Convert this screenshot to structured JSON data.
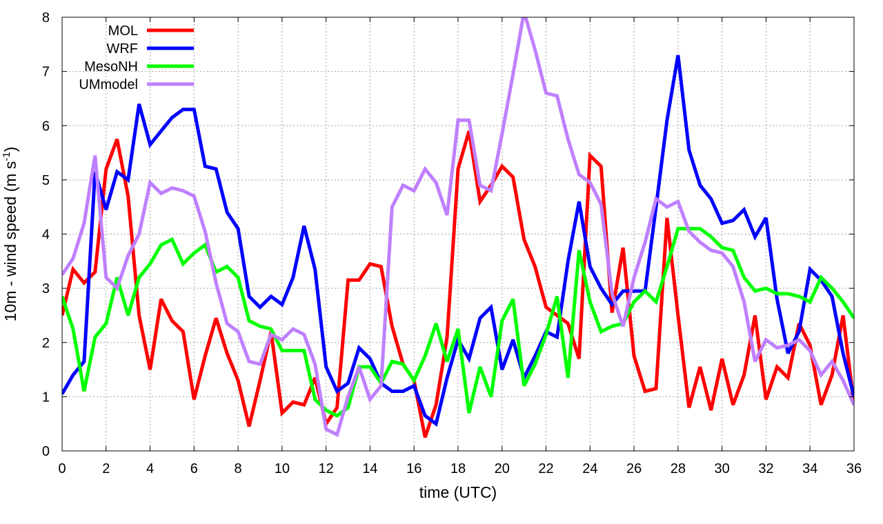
{
  "chart_data": {
    "type": "line",
    "title": "",
    "xlabel": "time (UTC)",
    "ylabel": {
      "main": "10m - wind speed  (m s",
      "sup": "-1",
      "close": ")"
    },
    "xlim": [
      0,
      36
    ],
    "ylim": [
      0,
      8
    ],
    "xticks": [
      0,
      2,
      4,
      6,
      8,
      10,
      12,
      14,
      16,
      18,
      20,
      22,
      24,
      26,
      28,
      30,
      32,
      34,
      36
    ],
    "yticks": [
      0,
      1,
      2,
      3,
      4,
      5,
      6,
      7,
      8
    ],
    "grid": true,
    "legend_position": "top-left",
    "x": [
      0,
      0.5,
      1,
      1.5,
      2,
      2.5,
      3,
      3.5,
      4,
      4.5,
      5,
      5.5,
      6,
      6.5,
      7,
      7.5,
      8,
      8.5,
      9,
      9.5,
      10,
      10.5,
      11,
      11.5,
      12,
      12.5,
      13,
      13.5,
      14,
      14.5,
      15,
      15.5,
      16,
      16.5,
      17,
      17.5,
      18,
      18.5,
      19,
      19.5,
      20,
      20.5,
      21,
      21.5,
      22,
      22.5,
      23,
      23.5,
      24,
      24.5,
      25,
      25.5,
      26,
      26.5,
      27,
      27.5,
      28,
      28.5,
      29,
      29.5,
      30,
      30.5,
      31,
      31.5,
      32,
      32.5,
      33,
      33.5,
      34,
      34.5,
      35,
      35.5,
      36
    ],
    "series": [
      {
        "name": "MOL",
        "color": "#ff0000",
        "values": [
          2.5,
          3.35,
          3.1,
          3.3,
          5.2,
          5.75,
          4.7,
          2.5,
          1.5,
          2.8,
          2.4,
          2.2,
          0.95,
          1.75,
          2.45,
          1.8,
          1.3,
          0.45,
          1.3,
          2.2,
          0.7,
          0.9,
          0.85,
          1.35,
          0.5,
          0.8,
          3.15,
          3.15,
          3.45,
          3.4,
          2.3,
          1.6,
          1.3,
          0.25,
          0.85,
          2.1,
          5.2,
          5.9,
          4.6,
          4.9,
          5.25,
          5.05,
          3.9,
          3.4,
          2.65,
          2.5,
          2.35,
          1.7,
          5.45,
          5.25,
          2.55,
          3.75,
          1.75,
          1.1,
          1.15,
          4.3,
          2.5,
          0.8,
          1.55,
          0.75,
          1.7,
          0.85,
          1.4,
          2.5,
          0.95,
          1.55,
          1.35,
          2.35,
          1.95,
          0.85,
          1.4,
          2.5,
          0.85
        ]
      },
      {
        "name": "WRF",
        "color": "#0000ff",
        "values": [
          1.05,
          1.4,
          1.65,
          5.15,
          4.45,
          5.15,
          5.0,
          6.4,
          5.65,
          5.9,
          6.15,
          6.3,
          6.3,
          5.25,
          5.2,
          4.4,
          4.1,
          2.85,
          2.65,
          2.85,
          2.7,
          3.2,
          4.15,
          3.35,
          1.55,
          1.1,
          1.25,
          1.9,
          1.7,
          1.25,
          1.1,
          1.1,
          1.2,
          0.65,
          0.5,
          1.35,
          2.05,
          1.7,
          2.45,
          2.65,
          1.5,
          2.05,
          1.35,
          1.75,
          2.2,
          2.1,
          3.5,
          4.6,
          3.4,
          3.0,
          2.7,
          2.95,
          2.95,
          2.95,
          4.5,
          6.1,
          7.3,
          5.55,
          4.9,
          4.65,
          4.2,
          4.25,
          4.45,
          3.95,
          4.3,
          2.8,
          1.8,
          2.2,
          3.35,
          3.15,
          2.85,
          1.8,
          1.0
        ]
      },
      {
        "name": "MesoNH",
        "color": "#00ff00",
        "values": [
          2.85,
          2.25,
          1.1,
          2.1,
          2.35,
          3.2,
          2.5,
          3.2,
          3.45,
          3.8,
          3.9,
          3.45,
          3.65,
          3.8,
          3.3,
          3.4,
          3.2,
          2.4,
          2.3,
          2.25,
          1.85,
          1.85,
          1.85,
          0.95,
          0.75,
          0.65,
          0.8,
          1.55,
          1.55,
          1.25,
          1.65,
          1.6,
          1.3,
          1.75,
          2.35,
          1.65,
          2.25,
          0.7,
          1.55,
          1.0,
          2.4,
          2.8,
          1.2,
          1.6,
          2.15,
          2.85,
          1.35,
          3.7,
          2.75,
          2.2,
          2.3,
          2.35,
          2.75,
          2.95,
          2.75,
          3.4,
          4.1,
          4.1,
          4.1,
          3.95,
          3.75,
          3.7,
          3.2,
          2.95,
          3.0,
          2.9,
          2.9,
          2.85,
          2.75,
          3.2,
          3.0,
          2.75,
          2.45
        ]
      },
      {
        "name": "UMmodel",
        "color": "#bf80ff",
        "values": [
          3.25,
          3.55,
          4.2,
          5.45,
          3.2,
          3.0,
          3.6,
          4.0,
          4.95,
          4.75,
          4.85,
          4.8,
          4.7,
          4.05,
          3.1,
          2.35,
          2.2,
          1.65,
          1.6,
          2.15,
          2.05,
          2.25,
          2.15,
          1.6,
          0.4,
          0.3,
          1.0,
          1.55,
          0.95,
          1.2,
          4.5,
          4.9,
          4.8,
          5.2,
          4.95,
          4.35,
          6.1,
          6.1,
          4.9,
          4.8,
          5.85,
          6.95,
          8.1,
          7.4,
          6.6,
          6.55,
          5.75,
          5.1,
          4.95,
          4.55,
          2.9,
          2.3,
          3.2,
          3.85,
          4.65,
          4.5,
          4.6,
          4.05,
          3.85,
          3.7,
          3.65,
          3.4,
          2.75,
          1.65,
          2.05,
          1.9,
          1.95,
          2.05,
          1.85,
          1.4,
          1.65,
          1.3,
          0.85
        ]
      }
    ]
  }
}
